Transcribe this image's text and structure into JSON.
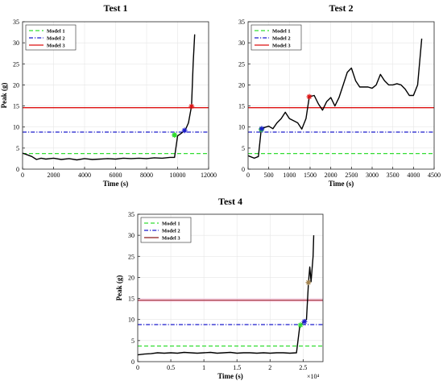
{
  "colors": {
    "model1": "#33dd33",
    "model2": "#1a1acc",
    "model3": "#dd1111",
    "test4_model3": "#8b1a1a",
    "series": "#000000",
    "grid": "#e6e6e6"
  },
  "legend_labels": [
    "Model 1",
    "Model 2",
    "Model 3"
  ],
  "chart_data": [
    {
      "type": "line",
      "title": "Test 1",
      "xlabel": "Time (s)",
      "ylabel": "Peak (g)",
      "xlim": [
        0,
        12000
      ],
      "ylim": [
        0,
        35
      ],
      "xticks": [
        "0",
        "2000",
        "4000",
        "6000",
        "8000",
        "10000",
        "12000"
      ],
      "yticks": [
        "0",
        "5",
        "10",
        "15",
        "20",
        "25",
        "30",
        "35"
      ],
      "xtick_values": [
        0,
        2000,
        4000,
        6000,
        8000,
        10000,
        12000
      ],
      "ytick_values": [
        0,
        5,
        10,
        15,
        20,
        25,
        30,
        35
      ],
      "exponent_label": "",
      "grid": true,
      "legend_position": "top-left",
      "thresholds": [
        {
          "name": "Model 1",
          "value": 3.7,
          "style": "dashed"
        },
        {
          "name": "Model 2",
          "value": 8.8,
          "style": "dashdot"
        },
        {
          "name": "Model 3",
          "value": 14.6,
          "style": "solid"
        }
      ],
      "series": {
        "x": [
          0,
          300,
          600,
          900,
          1200,
          1500,
          2000,
          2500,
          3000,
          3500,
          4000,
          4500,
          5000,
          5500,
          6000,
          6500,
          7000,
          7500,
          8000,
          8500,
          9000,
          9500,
          9800,
          10000,
          10200,
          10500,
          10700,
          10900,
          11000,
          11100
        ],
        "y": [
          3.8,
          3.4,
          3.0,
          2.3,
          2.6,
          2.4,
          2.6,
          2.3,
          2.5,
          2.2,
          2.5,
          2.3,
          2.4,
          2.5,
          2.4,
          2.6,
          2.5,
          2.6,
          2.5,
          2.7,
          2.6,
          2.8,
          2.8,
          7.9,
          8.4,
          9.3,
          11,
          15,
          25,
          32
        ]
      },
      "markers": [
        {
          "model": "Model 1",
          "x": 9800,
          "y": 8.1
        },
        {
          "model": "Model 2",
          "x": 10450,
          "y": 9.2
        },
        {
          "model": "Model 3",
          "x": 10900,
          "y": 14.9
        }
      ]
    },
    {
      "type": "line",
      "title": "Test 2",
      "xlabel": "Time (s)",
      "ylabel": "",
      "xlim": [
        0,
        4500
      ],
      "ylim": [
        0,
        35
      ],
      "xticks": [
        "0",
        "500",
        "1000",
        "1500",
        "2000",
        "2500",
        "3000",
        "3500",
        "4000",
        "4500"
      ],
      "yticks": [
        "0",
        "5",
        "10",
        "15",
        "20",
        "25",
        "30",
        "35"
      ],
      "xtick_values": [
        0,
        500,
        1000,
        1500,
        2000,
        2500,
        3000,
        3500,
        4000,
        4500
      ],
      "ytick_values": [
        0,
        5,
        10,
        15,
        20,
        25,
        30,
        35
      ],
      "exponent_label": "",
      "grid": true,
      "legend_position": "top-left",
      "thresholds": [
        {
          "name": "Model 1",
          "value": 3.7,
          "style": "dashed"
        },
        {
          "name": "Model 2",
          "value": 8.8,
          "style": "dashdot"
        },
        {
          "name": "Model 3",
          "value": 14.6,
          "style": "solid"
        }
      ],
      "series": {
        "x": [
          0,
          150,
          250,
          320,
          400,
          500,
          600,
          700,
          800,
          900,
          1000,
          1100,
          1200,
          1300,
          1400,
          1480,
          1600,
          1700,
          1800,
          1900,
          2000,
          2100,
          2200,
          2300,
          2400,
          2500,
          2600,
          2700,
          2800,
          2900,
          3000,
          3100,
          3200,
          3300,
          3400,
          3500,
          3600,
          3700,
          3800,
          3900,
          4000,
          4100,
          4200
        ],
        "y": [
          3.2,
          2.6,
          3.0,
          9.6,
          9.9,
          10.2,
          9.6,
          11,
          12,
          13.5,
          12,
          11.5,
          11,
          9.5,
          12,
          17.2,
          17.5,
          15.5,
          14,
          16,
          17,
          15,
          17,
          20,
          23,
          24,
          21,
          19.5,
          19.5,
          19.5,
          19.2,
          20,
          22.5,
          21,
          20,
          20,
          20.3,
          20,
          19,
          17.5,
          17.5,
          20,
          31
        ]
      },
      "markers": [
        {
          "model": "Model 1",
          "x": 320,
          "y": 9.4
        },
        {
          "model": "Model 2",
          "x": 330,
          "y": 9.6
        },
        {
          "model": "Model 3",
          "x": 1480,
          "y": 17.2
        }
      ]
    },
    {
      "type": "line",
      "title": "Test 4",
      "xlabel": "Time (s)",
      "ylabel": "Peak (g)",
      "xlim": [
        0,
        2.8
      ],
      "ylim": [
        0,
        35
      ],
      "xticks": [
        "0",
        "0.5",
        "1",
        "1.5",
        "2",
        "2.5"
      ],
      "yticks": [
        "0",
        "5",
        "10",
        "15",
        "20",
        "25",
        "30",
        "35"
      ],
      "xtick_values": [
        0,
        0.5,
        1,
        1.5,
        2,
        2.5
      ],
      "ytick_values": [
        0,
        5,
        10,
        15,
        20,
        25,
        30,
        35
      ],
      "exponent_label": "×10⁴",
      "grid": true,
      "legend_position": "top-left",
      "thresholds": [
        {
          "name": "Model 1",
          "value": 3.7,
          "style": "dashed"
        },
        {
          "name": "Model 2",
          "value": 8.8,
          "style": "dashdot"
        },
        {
          "name": "Model 3",
          "value": 14.6,
          "style": "solid"
        }
      ],
      "series": {
        "x": [
          0,
          0.1,
          0.2,
          0.3,
          0.4,
          0.5,
          0.6,
          0.7,
          0.8,
          0.9,
          1.0,
          1.1,
          1.2,
          1.3,
          1.4,
          1.5,
          1.6,
          1.7,
          1.8,
          1.9,
          2.0,
          2.1,
          2.2,
          2.3,
          2.4,
          2.45,
          2.5,
          2.55,
          2.58,
          2.6,
          2.62,
          2.65,
          2.66
        ],
        "y": [
          1.6,
          1.8,
          1.9,
          2.1,
          2.0,
          2.1,
          2.0,
          2.2,
          2.1,
          2.0,
          2.1,
          2.2,
          2.0,
          2.1,
          2.2,
          2.0,
          2.1,
          2.1,
          2.0,
          2.1,
          2.0,
          2.1,
          2.1,
          2.0,
          2.1,
          8.6,
          9.3,
          10,
          18.5,
          22.5,
          19,
          25,
          30
        ]
      },
      "markers": [
        {
          "model": "Model 1",
          "x": 2.46,
          "y": 8.7
        },
        {
          "model": "Model 2",
          "x": 2.52,
          "y": 9.5
        },
        {
          "model": "Model 3",
          "x": 2.58,
          "y": 18.8
        }
      ]
    }
  ]
}
